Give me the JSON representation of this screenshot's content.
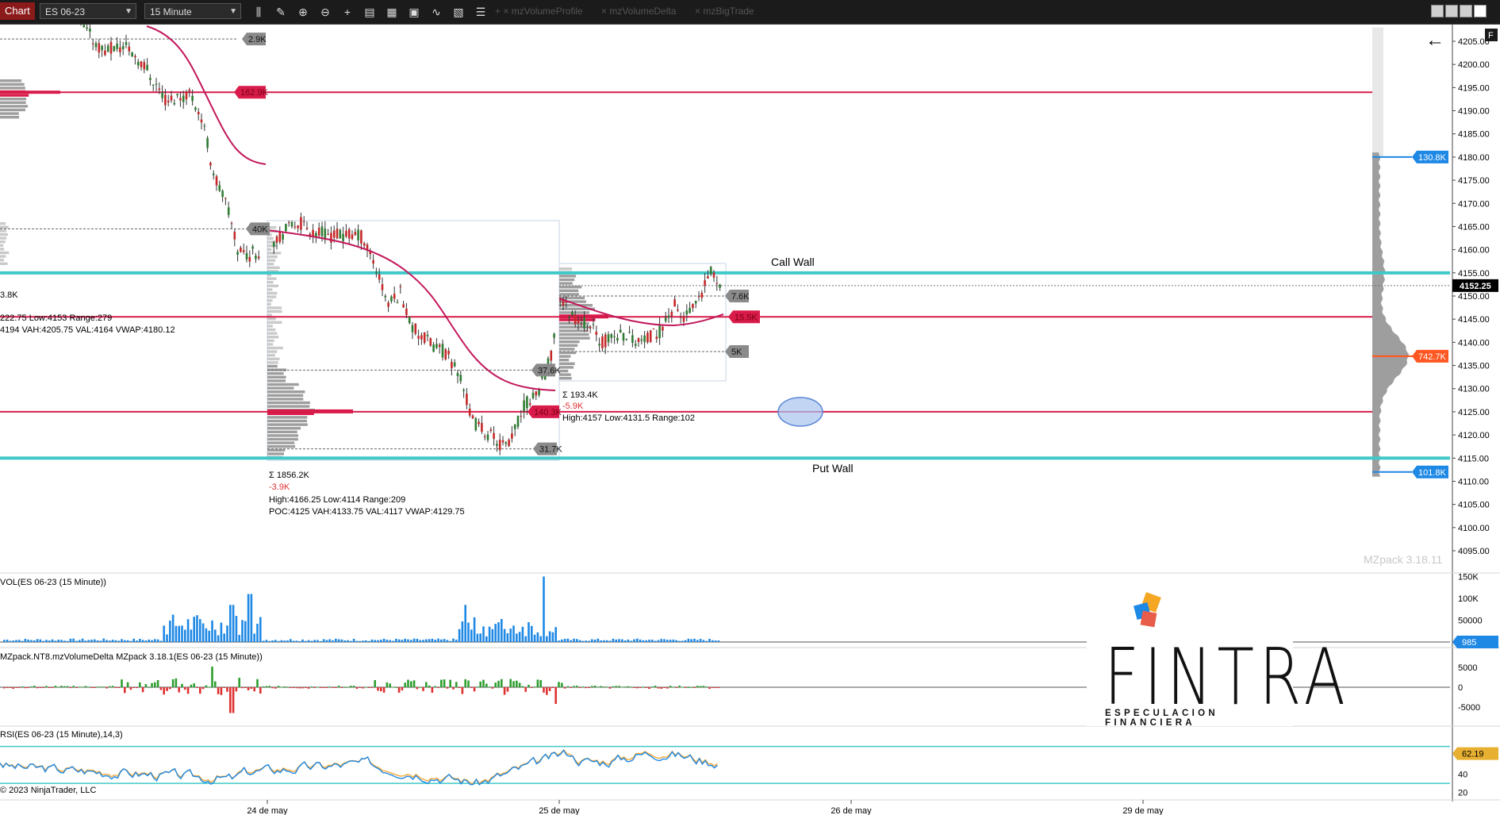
{
  "toolbar": {
    "title": "Chart",
    "instrument": "ES 06-23",
    "interval": "15 Minute",
    "indicators": [
      "mzVolumeProfile",
      "mzVolumeDelta",
      "mzBigTrade"
    ]
  },
  "price_axis": {
    "ticks": [
      "4205.00",
      "4200.00",
      "4195.00",
      "4190.00",
      "4185.00",
      "4180.00",
      "4175.00",
      "4170.00",
      "4165.00",
      "4160.00",
      "4155.00",
      "4150.00",
      "4145.00",
      "4140.00",
      "4135.00",
      "4130.00",
      "4125.00",
      "4120.00",
      "4115.00",
      "4110.00",
      "4105.00",
      "4100.00",
      "4095.00"
    ],
    "current_price": "4152.25",
    "markers": [
      {
        "label": "130.8K",
        "price": 4180,
        "color": "#1e88e5"
      },
      {
        "label": "742.7K",
        "price": 4137,
        "color": "#ff5722"
      },
      {
        "label": "101.8K",
        "price": 4112,
        "color": "#1e88e5"
      }
    ]
  },
  "levels": {
    "call_wall": {
      "label": "Call Wall",
      "price": 4155
    },
    "put_wall": {
      "label": "Put Wall",
      "price": 4115
    },
    "red_lines": [
      4194,
      4145.5,
      4125
    ]
  },
  "level_badges": [
    {
      "label": "2.9K",
      "type": "gray"
    },
    {
      "label": "162.9K",
      "type": "red"
    },
    {
      "label": "40K",
      "type": "gray"
    },
    {
      "label": "37.6K",
      "type": "gray"
    },
    {
      "label": "140.3K",
      "type": "red"
    },
    {
      "label": "31.7K",
      "type": "gray"
    },
    {
      "label": "7.6K",
      "type": "gray"
    },
    {
      "label": "15.5K",
      "type": "red"
    },
    {
      "label": "5K",
      "type": "gray"
    }
  ],
  "session_stats": {
    "s1": {
      "sum_partial": "3.8K",
      "range_line": "222.75 Low:4153 Range:279",
      "poc_line": "4194 VAH:4205.75 VAL:4164 VWAP:4180.12"
    },
    "s2": {
      "sum": "Σ 1856.2K",
      "delta": "-3.9K",
      "range_line": "High:4166.25 Low:4114 Range:209",
      "poc_line": "POC:4125 VAH:4133.75 VAL:4117 VWAP:4129.75"
    },
    "s3": {
      "sum": "Σ 193.4K",
      "delta": "-5.9K",
      "range_line": "High:4157 Low:4131.5 Range:102"
    }
  },
  "watermark": "MZpack 3.18.11",
  "panels": {
    "volume": {
      "title": "VOL(ES 06-23 (15 Minute))",
      "ticks": [
        "150K",
        "100K",
        "50000"
      ],
      "current": "985"
    },
    "delta": {
      "title": "MZpack.NT8.mzVolumeDelta MZpack 3.18.1(ES 06-23 (15 Minute))",
      "ticks": [
        "5000",
        "0",
        "-5000"
      ]
    },
    "rsi": {
      "title": "RSI(ES 06-23 (15 Minute),14,3)",
      "ticks": [
        "40",
        "20"
      ],
      "current": "62.19"
    }
  },
  "copyright": "© 2023 NinjaTrader, LLC",
  "time_axis": [
    "24 de may",
    "25 de may",
    "26 de may",
    "29 de may"
  ],
  "logo": {
    "main": "FINTRA",
    "sub": "ESPECULACION FINANCIERA",
    "colors": [
      "#f5a623",
      "#1e88e5",
      "#e85d4a"
    ]
  },
  "colors": {
    "call_put_wall": "#40c8c8",
    "level_red": "#d81b4a",
    "vwap": "#c2185b",
    "bull_candle": "#2e7d32",
    "bear_candle": "#c62828"
  }
}
